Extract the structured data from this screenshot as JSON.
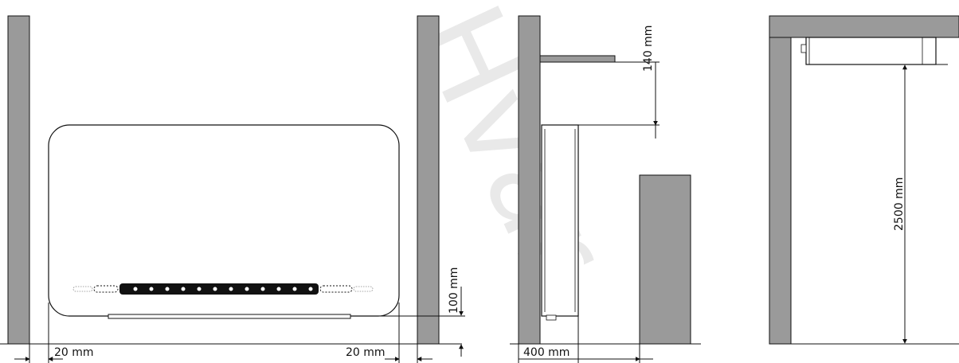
{
  "watermark": {
    "text": "Hvar"
  },
  "colors": {
    "wall": "#9a9a9a",
    "line": "#111111",
    "unit_fill": "#ffffff",
    "watermark": "#e9e9e9"
  },
  "front_view": {
    "left_clearance": "20 mm",
    "right_clearance": "20 mm",
    "floor_clearance": "100 mm"
  },
  "side_view": {
    "top_clearance": "140 mm",
    "front_clearance": "400 mm"
  },
  "ceiling_view": {
    "height": "2500 mm"
  }
}
